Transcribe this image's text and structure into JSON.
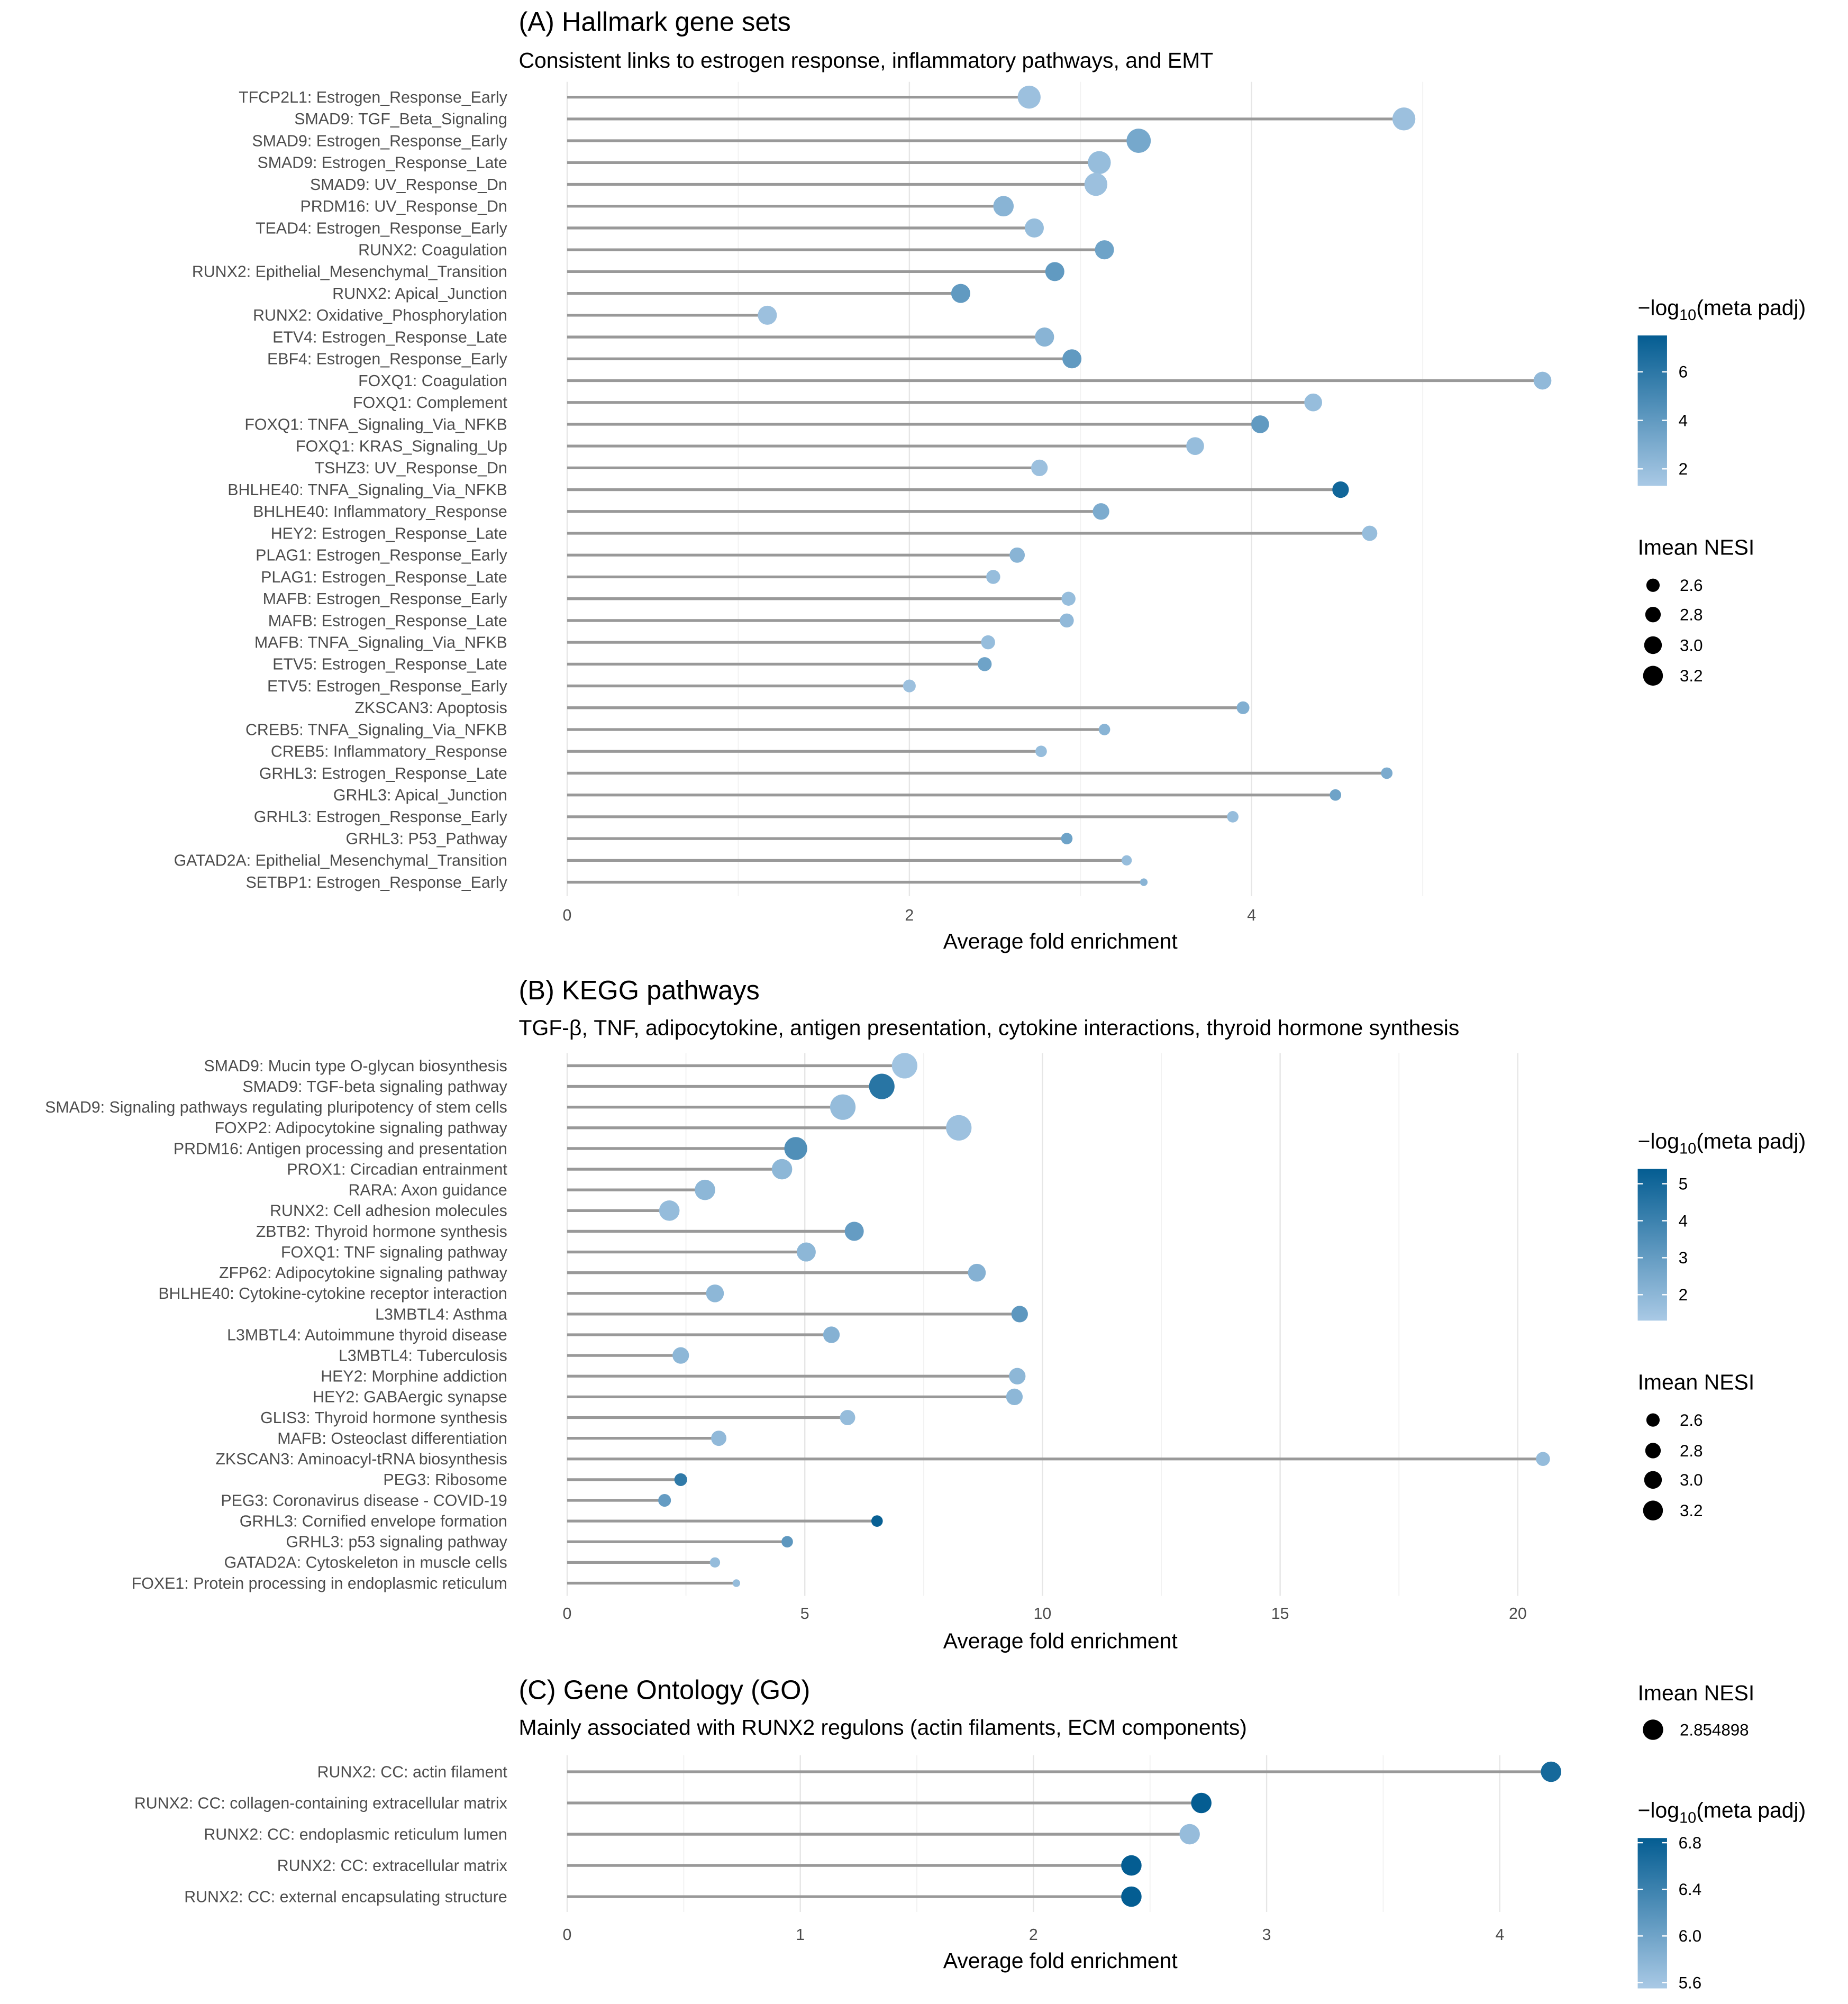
{
  "colors": {
    "low": "#a9c9e5",
    "high": "#045d92",
    "segment": "#999999",
    "grid_major": "#e6e6e6",
    "grid_minor": "#f2f2f2"
  },
  "chart_data": [
    {
      "type": "lollipop",
      "title": "(A) Hallmark gene sets",
      "subtitle": "Consistent links to estrogen response, inflammatory pathways, and EMT",
      "xlabel": "Average fold enrichment",
      "xlim": [
        0,
        5.75
      ],
      "xticks": [
        0,
        2,
        4
      ],
      "grid": true,
      "color_legend": {
        "title_prefix": "−log",
        "title_sub": "10",
        "title_suffix": "(meta padj)",
        "range": [
          1.3,
          7.5
        ],
        "ticks": [
          2,
          4,
          6
        ]
      },
      "size_legend": {
        "title": "Imean NESI",
        "values": [
          2.6,
          2.8,
          3.0,
          3.2
        ]
      },
      "rows": [
        {
          "label": "TFCP2L1: Estrogen_Response_Early",
          "x": 2.7,
          "padj": 1.8,
          "nesi": 3.38
        },
        {
          "label": "SMAD9: TGF_Beta_Signaling",
          "x": 4.89,
          "padj": 1.8,
          "nesi": 3.38
        },
        {
          "label": "SMAD9: Estrogen_Response_Early",
          "x": 3.34,
          "padj": 3.2,
          "nesi": 3.49
        },
        {
          "label": "SMAD9: Estrogen_Response_Late",
          "x": 3.11,
          "padj": 2.0,
          "nesi": 3.38
        },
        {
          "label": "SMAD9: UV_Response_Dn",
          "x": 3.09,
          "padj": 1.8,
          "nesi": 3.38
        },
        {
          "label": "PRDM16: UV_Response_Dn",
          "x": 2.55,
          "padj": 2.5,
          "nesi": 3.16
        },
        {
          "label": "TEAD4: Estrogen_Response_Early",
          "x": 2.73,
          "padj": 2.0,
          "nesi": 3.04
        },
        {
          "label": "RUNX2: Coagulation",
          "x": 3.14,
          "padj": 3.5,
          "nesi": 3.04
        },
        {
          "label": "RUNX2: Epithelial_Mesenchymal_Transition",
          "x": 2.85,
          "padj": 4.0,
          "nesi": 3.04
        },
        {
          "label": "RUNX2: Apical_Junction",
          "x": 2.3,
          "padj": 4.0,
          "nesi": 3.04
        },
        {
          "label": "RUNX2: Oxidative_Phosphorylation",
          "x": 1.17,
          "padj": 1.8,
          "nesi": 3.04
        },
        {
          "label": "ETV4: Estrogen_Response_Late",
          "x": 2.79,
          "padj": 2.5,
          "nesi": 3.04
        },
        {
          "label": "EBF4: Estrogen_Response_Early",
          "x": 2.95,
          "padj": 4.0,
          "nesi": 3.04
        },
        {
          "label": "FOXQ1: Coagulation",
          "x": 5.7,
          "padj": 2.2,
          "nesi": 2.93
        },
        {
          "label": "FOXQ1: Complement",
          "x": 4.36,
          "padj": 2.0,
          "nesi": 2.93
        },
        {
          "label": "FOXQ1: TNFA_Signaling_Via_NFKB",
          "x": 4.05,
          "padj": 4.0,
          "nesi": 2.93
        },
        {
          "label": "FOXQ1: KRAS_Signaling_Up",
          "x": 3.67,
          "padj": 2.0,
          "nesi": 2.93
        },
        {
          "label": "TSHZ3: UV_Response_Dn",
          "x": 2.76,
          "padj": 1.8,
          "nesi": 2.82
        },
        {
          "label": "BHLHE40: TNFA_Signaling_Via_NFKB",
          "x": 4.52,
          "padj": 7.0,
          "nesi": 2.82
        },
        {
          "label": "BHLHE40: Inflammatory_Response",
          "x": 3.12,
          "padj": 3.0,
          "nesi": 2.82
        },
        {
          "label": "HEY2: Estrogen_Response_Late",
          "x": 4.69,
          "padj": 2.0,
          "nesi": 2.71
        },
        {
          "label": "PLAG1: Estrogen_Response_Early",
          "x": 2.63,
          "padj": 2.5,
          "nesi": 2.71
        },
        {
          "label": "PLAG1: Estrogen_Response_Late",
          "x": 2.49,
          "padj": 2.0,
          "nesi": 2.6
        },
        {
          "label": "MAFB: Estrogen_Response_Early",
          "x": 2.93,
          "padj": 2.0,
          "nesi": 2.6
        },
        {
          "label": "MAFB: Estrogen_Response_Late",
          "x": 2.92,
          "padj": 2.2,
          "nesi": 2.6
        },
        {
          "label": "MAFB: TNFA_Signaling_Via_NFKB",
          "x": 2.46,
          "padj": 2.0,
          "nesi": 2.6
        },
        {
          "label": "ETV5: Estrogen_Response_Late",
          "x": 2.44,
          "padj": 3.5,
          "nesi": 2.6
        },
        {
          "label": "ETV5: Estrogen_Response_Early",
          "x": 2.0,
          "padj": 1.8,
          "nesi": 2.49
        },
        {
          "label": "ZKSCAN3: Apoptosis",
          "x": 3.95,
          "padj": 2.8,
          "nesi": 2.49
        },
        {
          "label": "CREB5: TNFA_Signaling_Via_NFKB",
          "x": 3.14,
          "padj": 2.5,
          "nesi": 2.38
        },
        {
          "label": "CREB5: Inflammatory_Response",
          "x": 2.77,
          "padj": 2.0,
          "nesi": 2.38
        },
        {
          "label": "GRHL3: Estrogen_Response_Late",
          "x": 4.79,
          "padj": 3.0,
          "nesi": 2.38
        },
        {
          "label": "GRHL3: Apical_Junction",
          "x": 4.49,
          "padj": 3.5,
          "nesi": 2.38
        },
        {
          "label": "GRHL3: Estrogen_Response_Early",
          "x": 3.89,
          "padj": 2.0,
          "nesi": 2.38
        },
        {
          "label": "GRHL3: P53_Pathway",
          "x": 2.92,
          "padj": 3.5,
          "nesi": 2.38
        },
        {
          "label": "GATAD2A: Epithelial_Mesenchymal_Transition",
          "x": 3.27,
          "padj": 2.0,
          "nesi": 2.27
        },
        {
          "label": "SETBP1: Estrogen_Response_Early",
          "x": 3.37,
          "padj": 2.5,
          "nesi": 2.04
        }
      ]
    },
    {
      "type": "lollipop",
      "title": "(B) KEGG pathways",
      "subtitle": "TGF-β, TNF, adipocytokine, antigen presentation, cytokine interactions, thyroid hormone synthesis",
      "xlabel": "Average fold enrichment",
      "xlim": [
        0,
        20.7
      ],
      "xticks": [
        0,
        5,
        10,
        15,
        20
      ],
      "grid": true,
      "color_legend": {
        "title_prefix": "−log",
        "title_sub": "10",
        "title_suffix": "(meta padj)",
        "range": [
          1.3,
          5.4
        ],
        "ticks": [
          2,
          3,
          4,
          5
        ]
      },
      "size_legend": {
        "title": "Imean NESI",
        "values": [
          2.6,
          2.8,
          3.0,
          3.2
        ]
      },
      "rows": [
        {
          "label": "SMAD9: Mucin type O-glycan biosynthesis",
          "x": 7.1,
          "padj": 1.5,
          "nesi": 3.6
        },
        {
          "label": "SMAD9: TGF-beta signaling pathway",
          "x": 6.62,
          "padj": 4.5,
          "nesi": 3.6
        },
        {
          "label": "SMAD9: Signaling pathways regulating pluripotency of stem cells",
          "x": 5.8,
          "padj": 1.8,
          "nesi": 3.6
        },
        {
          "label": "FOXP2: Adipocytokine signaling pathway",
          "x": 8.24,
          "padj": 1.6,
          "nesi": 3.6
        },
        {
          "label": "PRDM16: Antigen processing and presentation",
          "x": 4.81,
          "padj": 3.5,
          "nesi": 3.38
        },
        {
          "label": "PROX1: Circadian entrainment",
          "x": 4.52,
          "padj": 2.0,
          "nesi": 3.16
        },
        {
          "label": "RARA: Axon guidance",
          "x": 2.9,
          "padj": 2.0,
          "nesi": 3.16
        },
        {
          "label": "RUNX2: Cell adhesion molecules",
          "x": 2.15,
          "padj": 1.8,
          "nesi": 3.16
        },
        {
          "label": "ZBTB2: Thyroid hormone synthesis",
          "x": 6.04,
          "padj": 3.0,
          "nesi": 3.04
        },
        {
          "label": "FOXQ1: TNF signaling pathway",
          "x": 5.03,
          "padj": 2.0,
          "nesi": 3.04
        },
        {
          "label": "ZFP62: Adipocytokine signaling pathway",
          "x": 8.62,
          "padj": 2.2,
          "nesi": 2.93
        },
        {
          "label": "BHLHE40: Cytokine-cytokine receptor interaction",
          "x": 3.11,
          "padj": 2.0,
          "nesi": 2.93
        },
        {
          "label": "L3MBTL4: Asthma",
          "x": 9.52,
          "padj": 3.2,
          "nesi": 2.82
        },
        {
          "label": "L3MBTL4: Autoimmune thyroid disease",
          "x": 5.56,
          "padj": 2.2,
          "nesi": 2.82
        },
        {
          "label": "L3MBTL4: Tuberculosis",
          "x": 2.39,
          "padj": 2.0,
          "nesi": 2.82
        },
        {
          "label": "HEY2: Morphine addiction",
          "x": 9.47,
          "padj": 2.0,
          "nesi": 2.82
        },
        {
          "label": "HEY2: GABAergic synapse",
          "x": 9.41,
          "padj": 2.0,
          "nesi": 2.82
        },
        {
          "label": "GLIS3: Thyroid hormone synthesis",
          "x": 5.9,
          "padj": 1.8,
          "nesi": 2.71
        },
        {
          "label": "MAFB: Osteoclast differentiation",
          "x": 3.19,
          "padj": 1.9,
          "nesi": 2.71
        },
        {
          "label": "ZKSCAN3: Aminoacyl-tRNA biosynthesis",
          "x": 20.53,
          "padj": 1.8,
          "nesi": 2.6
        },
        {
          "label": "PEG3: Ribosome",
          "x": 2.39,
          "padj": 4.3,
          "nesi": 2.49
        },
        {
          "label": "PEG3: Coronavirus disease - COVID-19",
          "x": 2.05,
          "padj": 3.0,
          "nesi": 2.49
        },
        {
          "label": "GRHL3: Cornified envelope formation",
          "x": 6.52,
          "padj": 5.3,
          "nesi": 2.38
        },
        {
          "label": "GRHL3: p53 signaling pathway",
          "x": 4.63,
          "padj": 3.2,
          "nesi": 2.38
        },
        {
          "label": "GATAD2A: Cytoskeleton in muscle cells",
          "x": 3.11,
          "padj": 1.8,
          "nesi": 2.27
        },
        {
          "label": "FOXE1: Protein processing in endoplasmic reticulum",
          "x": 3.56,
          "padj": 1.8,
          "nesi": 2.04
        }
      ]
    },
    {
      "type": "lollipop",
      "title": "(C) Gene Ontology (GO)",
      "subtitle": "Mainly associated with RUNX2 regulons (actin filaments, ECM components)",
      "xlabel": "Average fold enrichment",
      "xlim": [
        0,
        4.22
      ],
      "xticks": [
        0,
        1,
        2,
        3,
        4
      ],
      "grid": true,
      "color_legend": {
        "title_prefix": "−log",
        "title_sub": "10",
        "title_suffix": "(meta padj)",
        "range": [
          5.55,
          6.84
        ],
        "ticks": [
          5.6,
          6.0,
          6.4,
          6.8
        ]
      },
      "size_legend": {
        "title": "Imean NESI",
        "values": [
          2.854898
        ]
      },
      "rows": [
        {
          "label": "RUNX2: CC: actin filament",
          "x": 4.22,
          "padj": 6.7,
          "nesi": 2.854898
        },
        {
          "label": "RUNX2: CC: collagen-containing extracellular matrix",
          "x": 2.72,
          "padj": 6.84,
          "nesi": 2.854898
        },
        {
          "label": "RUNX2: CC: endoplasmic reticulum lumen",
          "x": 2.67,
          "padj": 5.7,
          "nesi": 2.854898
        },
        {
          "label": "RUNX2: CC: extracellular matrix",
          "x": 2.42,
          "padj": 6.84,
          "nesi": 2.854898
        },
        {
          "label": "RUNX2: CC: external encapsulating structure",
          "x": 2.42,
          "padj": 6.84,
          "nesi": 2.854898
        }
      ]
    }
  ]
}
